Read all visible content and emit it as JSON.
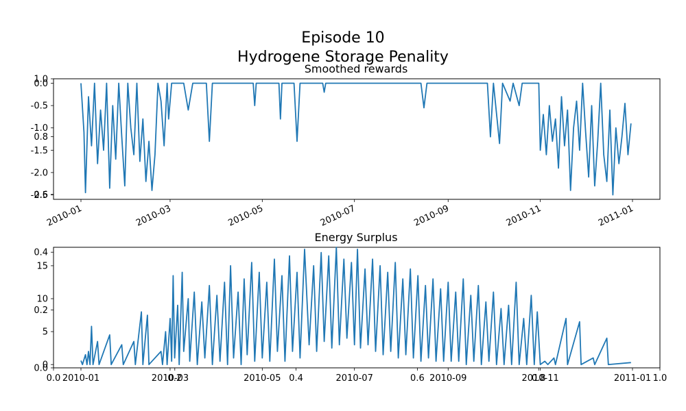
{
  "figure": {
    "title_line1": "Episode 10",
    "title_line2": "Hydrogene Storage Penality"
  },
  "colors": {
    "series": "#1f77b4",
    "axes": "#000000",
    "background": "#ffffff"
  },
  "chart_data": [
    {
      "type": "line",
      "title": "Smoothed rewards",
      "xlabel": "",
      "ylabel": "",
      "x_range": [
        "2010-01-01",
        "2011-01-01"
      ],
      "ylim": [
        -2.6,
        0.1
      ],
      "x_ticks": [
        "2010-01",
        "2010-03",
        "2010-05",
        "2010-07",
        "2010-09",
        "2010-11",
        "2011-01"
      ],
      "y_ticks": [
        "0.0",
        "-0.5",
        "-1.0",
        "-1.5",
        "-2.0",
        "-2.5"
      ],
      "grid": false,
      "series": [
        {
          "points": [
            [
              "2010-01-01",
              0.0
            ],
            [
              "2010-01-03",
              -1.1
            ],
            [
              "2010-01-04",
              -2.45
            ],
            [
              "2010-01-06",
              -0.3
            ],
            [
              "2010-01-08",
              -1.4
            ],
            [
              "2010-01-10",
              0.0
            ],
            [
              "2010-01-12",
              -1.8
            ],
            [
              "2010-01-14",
              -0.6
            ],
            [
              "2010-01-16",
              -1.5
            ],
            [
              "2010-01-18",
              0.0
            ],
            [
              "2010-01-20",
              -2.35
            ],
            [
              "2010-01-22",
              -0.5
            ],
            [
              "2010-01-24",
              -1.7
            ],
            [
              "2010-01-26",
              0.0
            ],
            [
              "2010-01-28",
              -1.2
            ],
            [
              "2010-01-30",
              -2.3
            ],
            [
              "2010-02-01",
              0.0
            ],
            [
              "2010-02-03",
              -1.0
            ],
            [
              "2010-02-05",
              -1.6
            ],
            [
              "2010-02-07",
              0.0
            ],
            [
              "2010-02-09",
              -1.75
            ],
            [
              "2010-02-11",
              -0.8
            ],
            [
              "2010-02-13",
              -2.2
            ],
            [
              "2010-02-15",
              -1.3
            ],
            [
              "2010-02-17",
              -2.4
            ],
            [
              "2010-02-19",
              -1.6
            ],
            [
              "2010-02-21",
              0.0
            ],
            [
              "2010-02-23",
              -0.4
            ],
            [
              "2010-02-25",
              -1.4
            ],
            [
              "2010-02-27",
              0.0
            ],
            [
              "2010-02-28",
              -0.8
            ],
            [
              "2010-03-02",
              0.0
            ],
            [
              "2010-03-10",
              0.0
            ],
            [
              "2010-03-13",
              -0.6
            ],
            [
              "2010-03-16",
              0.0
            ],
            [
              "2010-03-25",
              0.0
            ],
            [
              "2010-03-27",
              -1.3
            ],
            [
              "2010-03-29",
              0.0
            ],
            [
              "2010-04-25",
              0.0
            ],
            [
              "2010-04-26",
              -0.5
            ],
            [
              "2010-04-27",
              0.0
            ],
            [
              "2010-05-12",
              0.0
            ],
            [
              "2010-05-13",
              -0.8
            ],
            [
              "2010-05-14",
              0.0
            ],
            [
              "2010-05-22",
              0.0
            ],
            [
              "2010-05-24",
              -1.3
            ],
            [
              "2010-05-26",
              0.0
            ],
            [
              "2010-06-10",
              0.0
            ],
            [
              "2010-06-11",
              -0.2
            ],
            [
              "2010-06-12",
              0.0
            ],
            [
              "2010-08-14",
              0.0
            ],
            [
              "2010-08-16",
              -0.55
            ],
            [
              "2010-08-18",
              0.0
            ],
            [
              "2010-09-27",
              0.0
            ],
            [
              "2010-09-29",
              -1.2
            ],
            [
              "2010-10-01",
              0.0
            ],
            [
              "2010-10-05",
              -1.35
            ],
            [
              "2010-10-07",
              0.0
            ],
            [
              "2010-10-12",
              -0.4
            ],
            [
              "2010-10-14",
              0.0
            ],
            [
              "2010-10-18",
              -0.5
            ],
            [
              "2010-10-20",
              0.0
            ],
            [
              "2010-10-31",
              0.0
            ],
            [
              "2010-11-01",
              -1.5
            ],
            [
              "2010-11-03",
              -0.7
            ],
            [
              "2010-11-05",
              -1.6
            ],
            [
              "2010-11-07",
              -0.5
            ],
            [
              "2010-11-09",
              -1.3
            ],
            [
              "2010-11-11",
              -0.8
            ],
            [
              "2010-11-13",
              -1.9
            ],
            [
              "2010-11-15",
              -0.3
            ],
            [
              "2010-11-17",
              -1.4
            ],
            [
              "2010-11-19",
              -0.6
            ],
            [
              "2010-11-21",
              -2.4
            ],
            [
              "2010-11-23",
              -1.0
            ],
            [
              "2010-11-25",
              -0.4
            ],
            [
              "2010-11-27",
              -1.5
            ],
            [
              "2010-11-29",
              0.0
            ],
            [
              "2010-12-01",
              -1.1
            ],
            [
              "2010-12-03",
              -2.1
            ],
            [
              "2010-12-05",
              -0.5
            ],
            [
              "2010-12-07",
              -2.3
            ],
            [
              "2010-12-09",
              -1.3
            ],
            [
              "2010-12-11",
              0.0
            ],
            [
              "2010-12-13",
              -1.6
            ],
            [
              "2010-12-15",
              -2.2
            ],
            [
              "2010-12-17",
              -0.6
            ],
            [
              "2010-12-19",
              -2.5
            ],
            [
              "2010-12-21",
              -1.0
            ],
            [
              "2010-12-23",
              -1.8
            ],
            [
              "2010-12-25",
              -1.2
            ],
            [
              "2010-12-27",
              -0.45
            ],
            [
              "2010-12-29",
              -1.6
            ],
            [
              "2010-12-31",
              -0.9
            ]
          ]
        }
      ]
    },
    {
      "type": "line",
      "title": "Energy Surplus",
      "xlabel": "",
      "ylabel": "",
      "x_range": [
        "2010-01-01",
        "2011-01-01"
      ],
      "ylim": [
        -0.5,
        17.8
      ],
      "x_ticks": [
        "2010-01",
        "2010-03",
        "2010-05",
        "2010-07",
        "2010-09",
        "2010-11",
        "2011-01"
      ],
      "y_ticks": [
        "0",
        "5",
        "10",
        "15"
      ],
      "grid": false,
      "series": [
        {
          "points": [
            [
              "2010-01-01",
              0.6
            ],
            [
              "2010-01-02",
              0.0
            ],
            [
              "2010-01-04",
              1.5
            ],
            [
              "2010-01-05",
              0.0
            ],
            [
              "2010-01-06",
              2.0
            ],
            [
              "2010-01-07",
              0.0
            ],
            [
              "2010-01-08",
              5.8
            ],
            [
              "2010-01-09",
              0.0
            ],
            [
              "2010-01-12",
              3.5
            ],
            [
              "2010-01-13",
              0.0
            ],
            [
              "2010-01-20",
              4.5
            ],
            [
              "2010-01-21",
              0.0
            ],
            [
              "2010-01-28",
              3.0
            ],
            [
              "2010-01-29",
              0.0
            ],
            [
              "2010-02-05",
              3.5
            ],
            [
              "2010-02-06",
              0.0
            ],
            [
              "2010-02-10",
              8.0
            ],
            [
              "2010-02-11",
              0.0
            ],
            [
              "2010-02-14",
              7.5
            ],
            [
              "2010-02-15",
              0.0
            ],
            [
              "2010-02-23",
              2.0
            ],
            [
              "2010-02-24",
              0.0
            ],
            [
              "2010-02-26",
              5.0
            ],
            [
              "2010-02-27",
              0.0
            ],
            [
              "2010-03-01",
              7.0
            ],
            [
              "2010-03-02",
              0.5
            ],
            [
              "2010-03-03",
              13.5
            ],
            [
              "2010-03-04",
              1.0
            ],
            [
              "2010-03-06",
              9.0
            ],
            [
              "2010-03-07",
              0.0
            ],
            [
              "2010-03-09",
              14.0
            ],
            [
              "2010-03-10",
              2.0
            ],
            [
              "2010-03-13",
              10.0
            ],
            [
              "2010-03-14",
              0.5
            ],
            [
              "2010-03-17",
              11.0
            ],
            [
              "2010-03-19",
              0.0
            ],
            [
              "2010-03-22",
              9.5
            ],
            [
              "2010-03-24",
              1.0
            ],
            [
              "2010-03-27",
              12.0
            ],
            [
              "2010-03-29",
              0.0
            ],
            [
              "2010-04-01",
              10.5
            ],
            [
              "2010-04-03",
              0.5
            ],
            [
              "2010-04-06",
              12.5
            ],
            [
              "2010-04-08",
              0.0
            ],
            [
              "2010-04-10",
              15.0
            ],
            [
              "2010-04-12",
              1.0
            ],
            [
              "2010-04-15",
              11.0
            ],
            [
              "2010-04-17",
              0.0
            ],
            [
              "2010-04-19",
              13.0
            ],
            [
              "2010-04-21",
              1.5
            ],
            [
              "2010-04-24",
              15.5
            ],
            [
              "2010-04-26",
              0.5
            ],
            [
              "2010-04-29",
              14.0
            ],
            [
              "2010-05-01",
              1.0
            ],
            [
              "2010-05-04",
              12.5
            ],
            [
              "2010-05-06",
              0.5
            ],
            [
              "2010-05-09",
              16.0
            ],
            [
              "2010-05-11",
              2.0
            ],
            [
              "2010-05-14",
              13.5
            ],
            [
              "2010-05-16",
              0.5
            ],
            [
              "2010-05-19",
              16.5
            ],
            [
              "2010-05-21",
              2.0
            ],
            [
              "2010-05-24",
              14.0
            ],
            [
              "2010-05-26",
              1.0
            ],
            [
              "2010-05-29",
              17.5
            ],
            [
              "2010-06-01",
              3.0
            ],
            [
              "2010-06-04",
              15.0
            ],
            [
              "2010-06-06",
              2.0
            ],
            [
              "2010-06-09",
              17.0
            ],
            [
              "2010-06-11",
              3.5
            ],
            [
              "2010-06-14",
              16.5
            ],
            [
              "2010-06-16",
              2.5
            ],
            [
              "2010-06-19",
              17.8
            ],
            [
              "2010-06-21",
              3.0
            ],
            [
              "2010-06-24",
              16.0
            ],
            [
              "2010-06-26",
              4.0
            ],
            [
              "2010-06-29",
              15.5
            ],
            [
              "2010-07-01",
              3.0
            ],
            [
              "2010-07-03",
              17.5
            ],
            [
              "2010-07-05",
              2.5
            ],
            [
              "2010-07-08",
              14.5
            ],
            [
              "2010-07-10",
              3.0
            ],
            [
              "2010-07-13",
              16.0
            ],
            [
              "2010-07-15",
              2.0
            ],
            [
              "2010-07-18",
              15.0
            ],
            [
              "2010-07-20",
              1.5
            ],
            [
              "2010-07-23",
              14.0
            ],
            [
              "2010-07-25",
              2.0
            ],
            [
              "2010-07-28",
              15.5
            ],
            [
              "2010-07-30",
              1.0
            ],
            [
              "2010-08-02",
              13.0
            ],
            [
              "2010-08-04",
              1.5
            ],
            [
              "2010-08-07",
              14.5
            ],
            [
              "2010-08-09",
              1.0
            ],
            [
              "2010-08-12",
              13.5
            ],
            [
              "2010-08-14",
              0.5
            ],
            [
              "2010-08-17",
              12.0
            ],
            [
              "2010-08-19",
              1.0
            ],
            [
              "2010-08-22",
              13.0
            ],
            [
              "2010-08-24",
              0.5
            ],
            [
              "2010-08-27",
              11.5
            ],
            [
              "2010-08-29",
              0.5
            ],
            [
              "2010-09-01",
              12.5
            ],
            [
              "2010-09-03",
              0.5
            ],
            [
              "2010-09-06",
              11.0
            ],
            [
              "2010-09-08",
              0.5
            ],
            [
              "2010-09-11",
              13.0
            ],
            [
              "2010-09-13",
              0.0
            ],
            [
              "2010-09-16",
              10.5
            ],
            [
              "2010-09-18",
              0.5
            ],
            [
              "2010-09-21",
              12.0
            ],
            [
              "2010-09-23",
              0.0
            ],
            [
              "2010-09-26",
              9.5
            ],
            [
              "2010-09-28",
              0.5
            ],
            [
              "2010-10-01",
              11.0
            ],
            [
              "2010-10-03",
              0.0
            ],
            [
              "2010-10-06",
              8.5
            ],
            [
              "2010-10-08",
              0.0
            ],
            [
              "2010-10-11",
              9.0
            ],
            [
              "2010-10-13",
              0.0
            ],
            [
              "2010-10-16",
              12.5
            ],
            [
              "2010-10-18",
              0.0
            ],
            [
              "2010-10-21",
              7.0
            ],
            [
              "2010-10-23",
              0.0
            ],
            [
              "2010-10-26",
              10.5
            ],
            [
              "2010-10-28",
              0.0
            ],
            [
              "2010-10-30",
              8.0
            ],
            [
              "2010-11-01",
              0.0
            ],
            [
              "2010-11-04",
              0.5
            ],
            [
              "2010-11-06",
              0.0
            ],
            [
              "2010-11-10",
              1.0
            ],
            [
              "2010-11-11",
              0.0
            ],
            [
              "2010-11-18",
              7.0
            ],
            [
              "2010-11-19",
              0.0
            ],
            [
              "2010-11-27",
              6.5
            ],
            [
              "2010-11-28",
              0.0
            ],
            [
              "2010-12-06",
              1.0
            ],
            [
              "2010-12-07",
              0.0
            ],
            [
              "2010-12-15",
              4.0
            ],
            [
              "2010-12-16",
              0.0
            ],
            [
              "2010-12-31",
              0.3
            ]
          ]
        }
      ]
    }
  ],
  "overlay_axis": {
    "x_ticks": [
      "0.0",
      "0.2",
      "0.4",
      "0.6",
      "0.8",
      "1.0"
    ],
    "y_ticks": [
      "0.0",
      "0.2",
      "0.4",
      "0.6",
      "0.8",
      "1.0"
    ]
  }
}
